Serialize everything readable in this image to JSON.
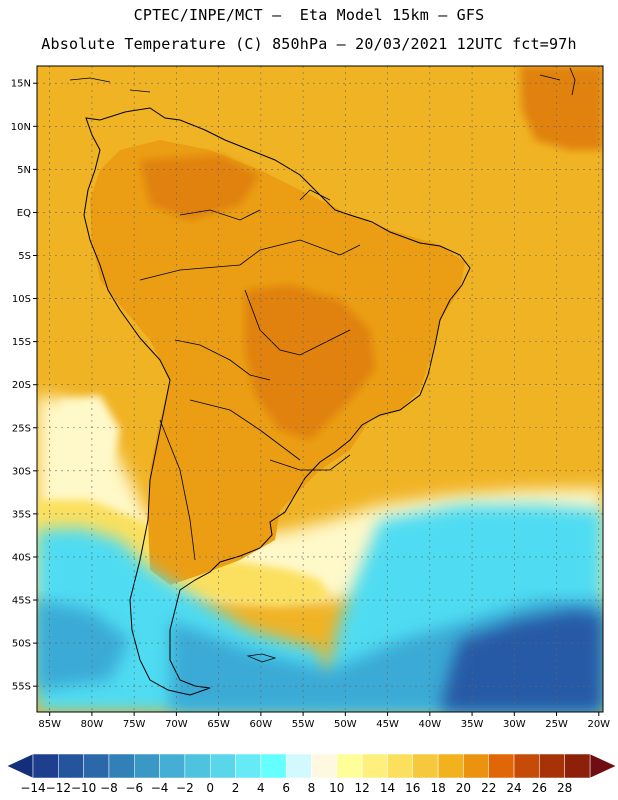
{
  "header": {
    "line1": "CPTEC/INPE/MCT –  Eta Model 15km – GFS",
    "line2": "Absolute Temperature (C) 850hPa – 20/03/2021 12UTC fct=97h"
  },
  "map": {
    "lat_labels": [
      "15N",
      "10N",
      "5N",
      "EQ",
      "5S",
      "10S",
      "15S",
      "20S",
      "25S",
      "30S",
      "35S",
      "40S",
      "45S",
      "50S",
      "55S"
    ],
    "lon_labels": [
      "85W",
      "80W",
      "75W",
      "70W",
      "65W",
      "60W",
      "55W",
      "50W",
      "45W",
      "40W",
      "35W",
      "30W",
      "25W",
      "20W"
    ],
    "lat_range": [
      17,
      -58
    ],
    "lon_range": [
      -86.5,
      -19.5
    ]
  },
  "colorbar": {
    "labels": [
      "-14",
      "-12",
      "-10",
      "-8",
      "-6",
      "-4",
      "-2",
      "0",
      "2",
      "4",
      "6",
      "8",
      "10",
      "12",
      "14",
      "16",
      "18",
      "20",
      "22",
      "24",
      "26",
      "28"
    ],
    "colors": [
      "#1e3e8e",
      "#24549c",
      "#2a68aa",
      "#3180b8",
      "#3a98c6",
      "#44aed4",
      "#4dc3e0",
      "#59d6ea",
      "#66eaf6",
      "#66ffff",
      "#d2fafe",
      "#fff8e0",
      "#ffff9a",
      "#fff07d",
      "#fbe05e",
      "#f5c83e",
      "#f2b21e",
      "#eb9210",
      "#e06608",
      "#c64a08",
      "#a83208",
      "#8c2008"
    ],
    "low_color": "#142f7a",
    "high_color": "#6e0d12"
  },
  "colors": {
    "ocean_warm": "#f0b324",
    "land_warm": "#eb9e14",
    "hot": "#e0820c",
    "cool_pale": "#fff8c8",
    "cold": "#4fdcf2",
    "colder": "#3aaad6",
    "coldest": "#255aa6"
  }
}
